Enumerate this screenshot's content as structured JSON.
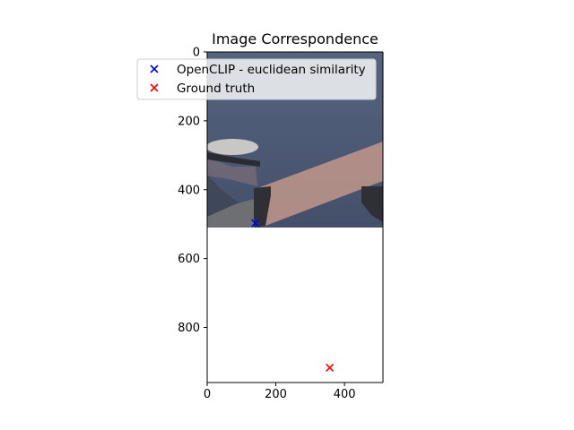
{
  "chart_data": {
    "type": "scatter",
    "title": "Image Correspondence",
    "xlabel": "",
    "ylabel": "",
    "xlim": [
      0,
      512
    ],
    "ylim": [
      960,
      0
    ],
    "y_axis_inverted": true,
    "grid": false,
    "legend_placement": "upper-left",
    "xticks": [
      "0",
      "200",
      "400"
    ],
    "xtick_values": [
      0,
      200,
      400
    ],
    "yticks": [
      "0",
      "200",
      "400",
      "600",
      "800"
    ],
    "ytick_values": [
      0,
      200,
      400,
      600,
      800
    ],
    "background_image": {
      "description_colors": {
        "sky": "#4c5a72",
        "arm": "#b99389",
        "shadow": "#2f3036",
        "gray": "#6d6f72"
      },
      "extent_y": [
        0,
        512
      ],
      "extent_x": [
        0,
        512
      ]
    },
    "series": [
      {
        "name": "OpenCLIP - euclidean similarity",
        "marker": "x",
        "color": "#0000ff",
        "points": [
          {
            "x": 140,
            "y": 497
          }
        ]
      },
      {
        "name": "Ground truth",
        "marker": "x",
        "color": "#ff0000",
        "points": [
          {
            "x": 357,
            "y": 917
          }
        ]
      }
    ]
  }
}
